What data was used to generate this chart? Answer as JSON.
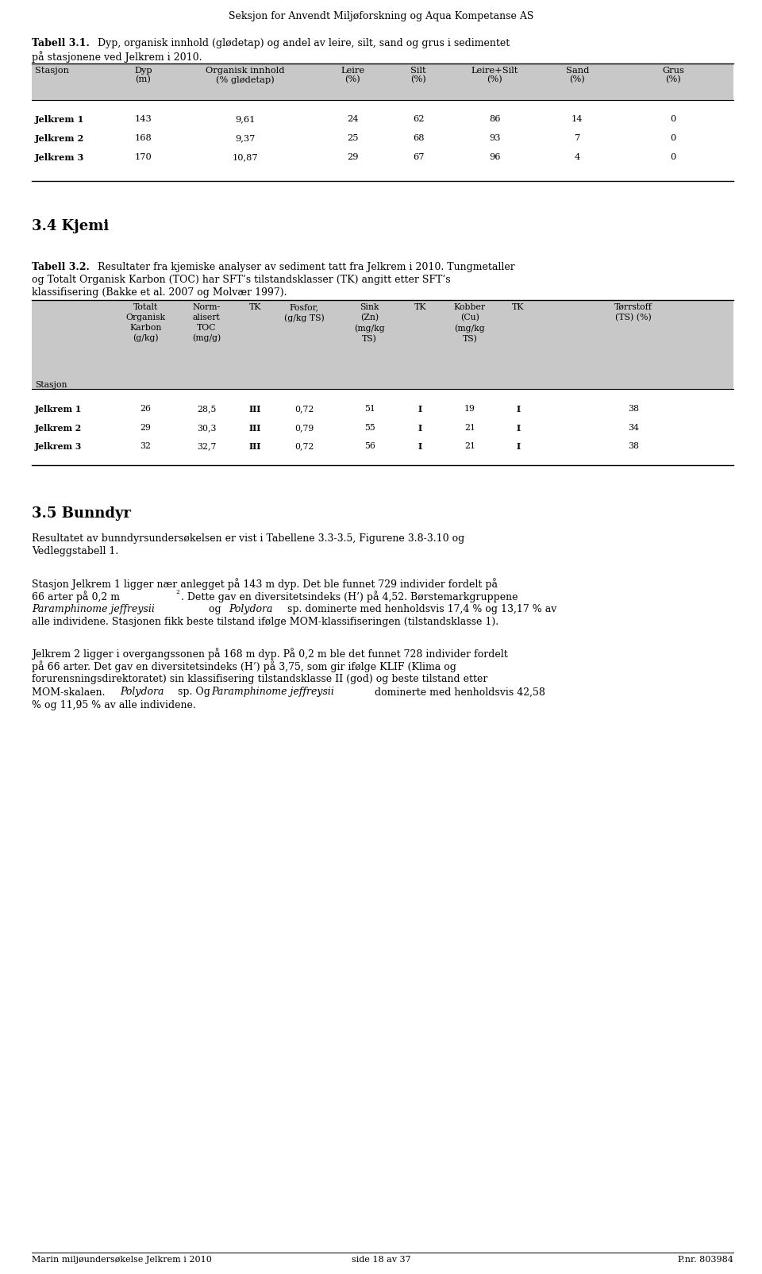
{
  "page_width": 9.6,
  "page_height": 16.05,
  "bg_color": "#ffffff",
  "header_text": "Seksjon for Anvendt Miljøforskning og Aqua Kompetanse AS",
  "t31_bold": "Tabell 3.1.",
  "t31_rest": " Dyp, organisk innhold (glødetap) og andel av leire, silt, sand og grus i sedimentet",
  "t31_rest2": "på stasjonene ved Jelkrem i 2010.",
  "t31_h1": [
    "Stasjon",
    "Dyp",
    "Organisk innhold",
    "Leire",
    "Silt",
    "Leire+Silt",
    "Sand",
    "Grus"
  ],
  "t31_h2": [
    "",
    "(m)",
    "(% glødetap)",
    "(%)",
    "(%)",
    "(%)",
    "(%)",
    "(%)"
  ],
  "t31_data": [
    [
      "Jelkrem 1",
      "143",
      "9,61",
      "24",
      "62",
      "86",
      "14",
      "0"
    ],
    [
      "Jelkrem 2",
      "168",
      "9,37",
      "25",
      "68",
      "93",
      "7",
      "0"
    ],
    [
      "Jelkrem 3",
      "170",
      "10,87",
      "29",
      "67",
      "96",
      "4",
      "0"
    ]
  ],
  "sec_kjemi": "3.4 Kjemi",
  "t32_bold": "Tabell 3.2.",
  "t32_rest_l1": " Resultater fra kjemiske analyser av sediment tatt fra Jelkrem i 2010. Tungmetaller",
  "t32_rest_l2": "og Totalt Organisk Karbon (TOC) har SFT’s tilstandsklasser (TK) angitt etter SFT’s",
  "t32_rest_l3": "klassifisering (Bakke et al. 2007 og Molvær 1997).",
  "t32_data": [
    [
      "Jelkrem 1",
      "26",
      "28,5",
      "III",
      "0,72",
      "51",
      "I",
      "19",
      "I",
      "38"
    ],
    [
      "Jelkrem 2",
      "29",
      "30,3",
      "III",
      "0,79",
      "55",
      "I",
      "21",
      "I",
      "34"
    ],
    [
      "Jelkrem 3",
      "32",
      "32,7",
      "III",
      "0,72",
      "56",
      "I",
      "21",
      "I",
      "38"
    ]
  ],
  "sec_bunndyr": "3.5 Bunndyr",
  "p_bunndyr_l1": "Resultatet av bunndyrsundersøkelsen er vist i Tabellene 3.3-3.5, Figurene 3.8-3.10 og",
  "p_bunndyr_l2": "Vedleggstabell 1.",
  "p1_l1": "Stasjon Jelkrem 1 ligger nær anlegget på 143 m dyp. Det ble funnet 729 individer fordelt på",
  "p1_l2a": "66 arter på 0,2 m",
  "p1_l2b": ". Dette gav en diversitetsindeks (H’) på 4,52. Børstemarkgruppene",
  "p1_l3a": "",
  "p1_l3_it1": "Paramphinome jeffreysii",
  "p1_l3_mid": " og ",
  "p1_l3_it2": "Polydora",
  "p1_l3b": " sp. dominerte med henholdsvis 17,4 % og 13,17 % av",
  "p1_l4": "alle individene. Stasjonen fikk beste tilstand ifølge MOM-klassifiseringen (tilstandsklasse 1).",
  "p2_l1": "Jelkrem 2 ligger i overgangssonen på 168 m dyp. På 0,2 m ble det funnet 728 individer fordelt",
  "p2_l2": "på 66 arter. Det gav en diversitetsindeks (H’) på 3,75, som gir ifølge KLIF (Klima og",
  "p2_l3": "forurensningsdirektoratet) sin klassifisering tilstandsklasse II (god) og beste tilstand etter",
  "p2_l4a": "MOM-skalaen. ",
  "p2_l4_it1": "Polydora",
  "p2_l4_mid": " sp. Og ",
  "p2_l4_it2": "Paramphinome jeffreysii",
  "p2_l4b": " dominerte med henholdsvis 42,58",
  "p2_l5": "% og 11,95 % av alle individene.",
  "footer_left": "Marin miljøundersøkelse Jelkrem i 2010",
  "footer_mid": "side 18 av 37",
  "footer_right": "P.nr. 803984",
  "table_hdr_bg": "#c8c8c8"
}
